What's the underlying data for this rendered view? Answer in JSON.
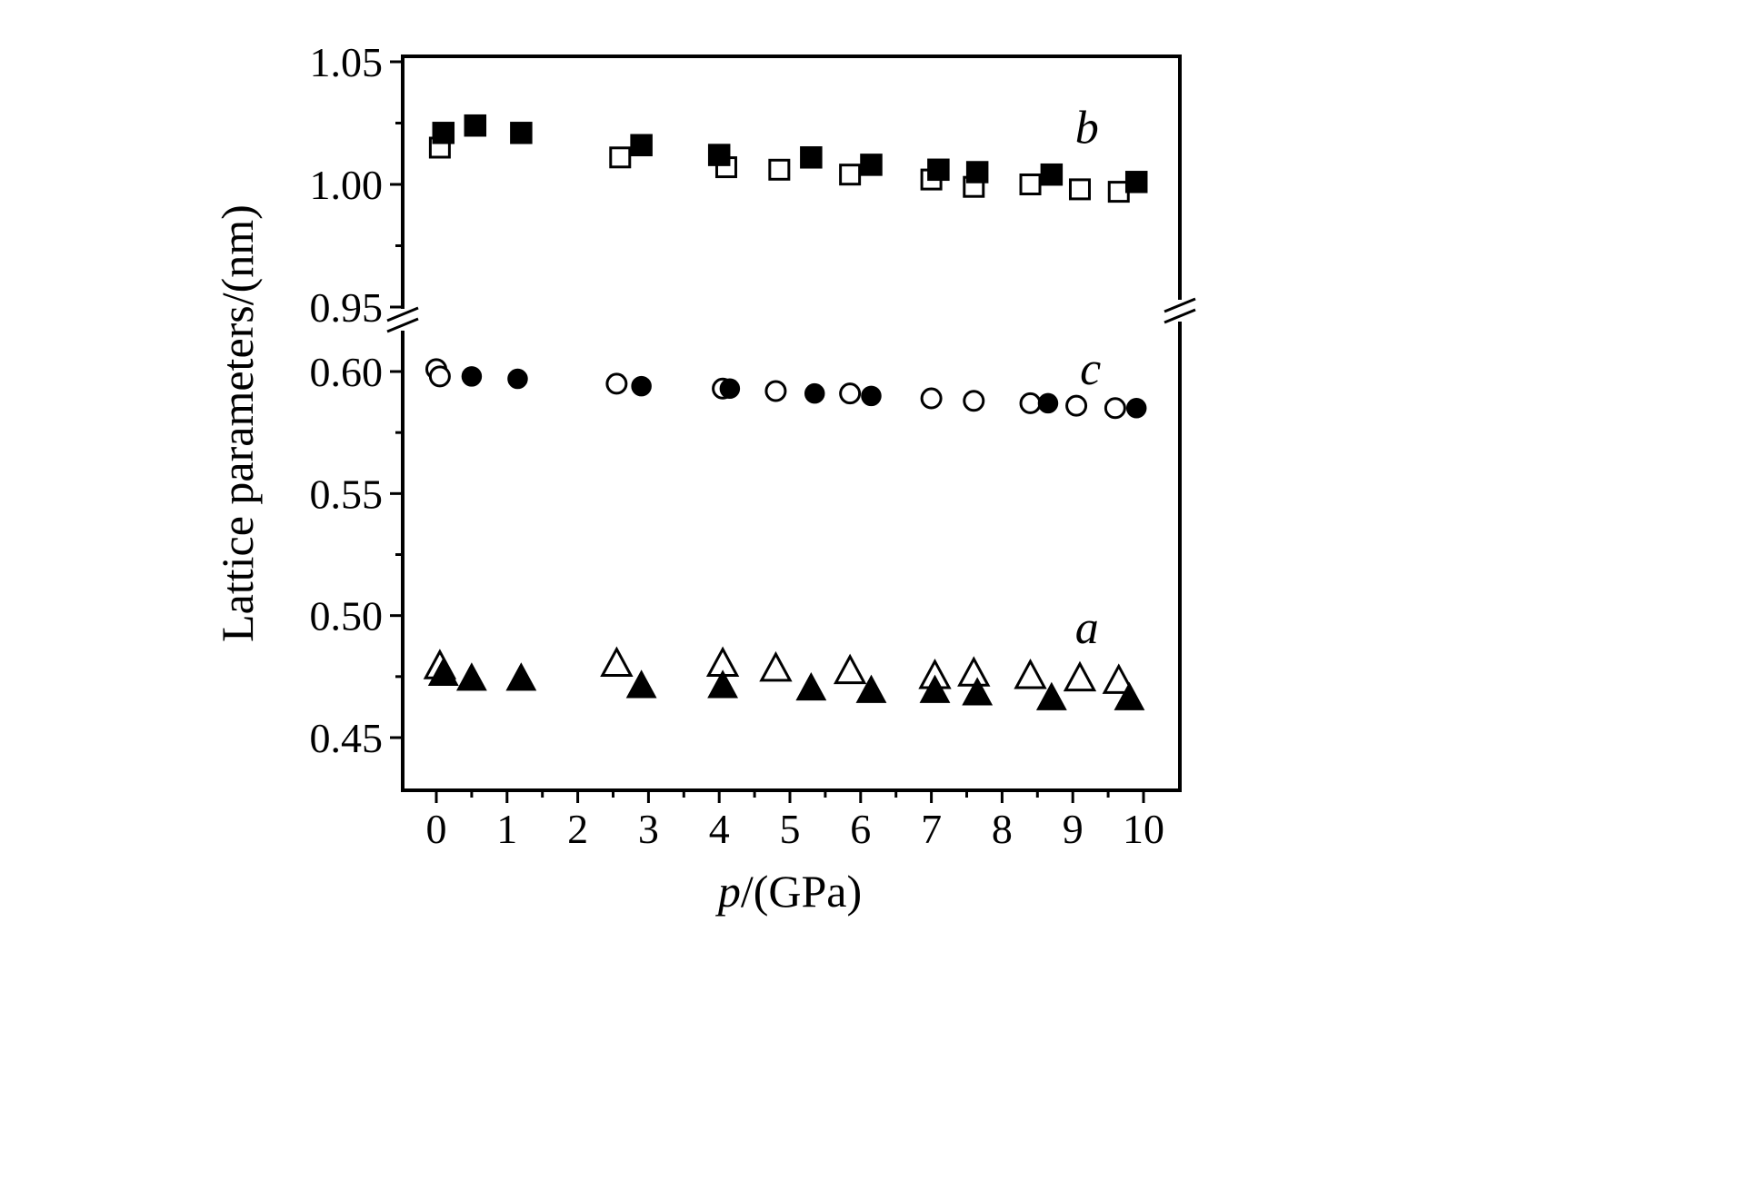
{
  "chart_data": {
    "type": "scatter",
    "title": "",
    "xlabel": "p/(GPa)",
    "xlabel_var": "p",
    "xlabel_rest": "/(GPa)",
    "ylabel": "Lattice parameters/(nm)",
    "xlim": [
      -0.5,
      10.5
    ],
    "grid": false,
    "legend_position": "none",
    "y_axis_break": {
      "upper_range": [
        0.95,
        1.05
      ],
      "lower_range": [
        0.44,
        0.615
      ]
    },
    "x_tick_labels": [
      "0",
      "1",
      "2",
      "3",
      "4",
      "5",
      "6",
      "7",
      "8",
      "9",
      "10"
    ],
    "x_minor_ticks": [
      0.5,
      1.5,
      2.5,
      3.5,
      4.5,
      5.5,
      6.5,
      7.5,
      8.5,
      9.5
    ],
    "y_tick_labels_upper": [
      "1.05",
      "1.00",
      "0.95"
    ],
    "y_minor_ticks_upper": [
      1.025,
      0.975
    ],
    "y_tick_labels_lower": [
      "0.60",
      "0.55",
      "0.50",
      "0.45"
    ],
    "y_minor_ticks_lower": [
      0.575,
      0.525,
      0.475
    ],
    "annotations": [
      {
        "text": "b",
        "x": 9.2,
        "y": 1.0235
      },
      {
        "text": "c",
        "x": 9.25,
        "y": 0.6015
      },
      {
        "text": "a",
        "x": 9.2,
        "y": 0.4955
      }
    ],
    "series": [
      {
        "name": "b open squares",
        "marker": "square-open",
        "points": [
          [
            0.05,
            1.015
          ],
          [
            2.6,
            1.011
          ],
          [
            4.1,
            1.007
          ],
          [
            4.85,
            1.006
          ],
          [
            5.85,
            1.004
          ],
          [
            7.0,
            1.002
          ],
          [
            7.6,
            0.999
          ],
          [
            8.4,
            1.0
          ],
          [
            9.1,
            0.998
          ],
          [
            9.65,
            0.997
          ]
        ]
      },
      {
        "name": "b filled squares",
        "marker": "square-filled",
        "points": [
          [
            0.1,
            1.021
          ],
          [
            0.55,
            1.024
          ],
          [
            1.2,
            1.021
          ],
          [
            2.9,
            1.016
          ],
          [
            4.0,
            1.012
          ],
          [
            5.3,
            1.011
          ],
          [
            6.15,
            1.008
          ],
          [
            7.1,
            1.006
          ],
          [
            7.65,
            1.005
          ],
          [
            8.7,
            1.004
          ],
          [
            9.9,
            1.001
          ]
        ]
      },
      {
        "name": "c open circles",
        "marker": "circle-open",
        "points": [
          [
            0.0,
            0.601
          ],
          [
            0.05,
            0.598
          ],
          [
            2.55,
            0.595
          ],
          [
            4.05,
            0.593
          ],
          [
            4.8,
            0.592
          ],
          [
            5.85,
            0.591
          ],
          [
            7.0,
            0.589
          ],
          [
            7.6,
            0.588
          ],
          [
            8.4,
            0.587
          ],
          [
            9.05,
            0.586
          ],
          [
            9.6,
            0.585
          ]
        ]
      },
      {
        "name": "c filled circles",
        "marker": "circle-filled",
        "points": [
          [
            0.5,
            0.598
          ],
          [
            1.15,
            0.597
          ],
          [
            2.9,
            0.594
          ],
          [
            4.15,
            0.593
          ],
          [
            5.35,
            0.591
          ],
          [
            6.15,
            0.59
          ],
          [
            8.65,
            0.587
          ],
          [
            9.9,
            0.585
          ]
        ]
      },
      {
        "name": "a open triangles",
        "marker": "triangle-open",
        "points": [
          [
            0.05,
            0.479
          ],
          [
            2.55,
            0.48
          ],
          [
            4.05,
            0.48
          ],
          [
            4.8,
            0.478
          ],
          [
            5.85,
            0.477
          ],
          [
            7.05,
            0.475
          ],
          [
            7.6,
            0.476
          ],
          [
            8.4,
            0.475
          ],
          [
            9.1,
            0.474
          ],
          [
            9.65,
            0.473
          ]
        ]
      },
      {
        "name": "a filled triangles",
        "marker": "triangle-filled",
        "points": [
          [
            0.1,
            0.476
          ],
          [
            0.5,
            0.474
          ],
          [
            1.2,
            0.474
          ],
          [
            2.9,
            0.471
          ],
          [
            4.05,
            0.471
          ],
          [
            5.3,
            0.47
          ],
          [
            6.15,
            0.469
          ],
          [
            7.05,
            0.469
          ],
          [
            7.65,
            0.468
          ],
          [
            8.7,
            0.466
          ],
          [
            9.8,
            0.466
          ]
        ]
      }
    ]
  }
}
